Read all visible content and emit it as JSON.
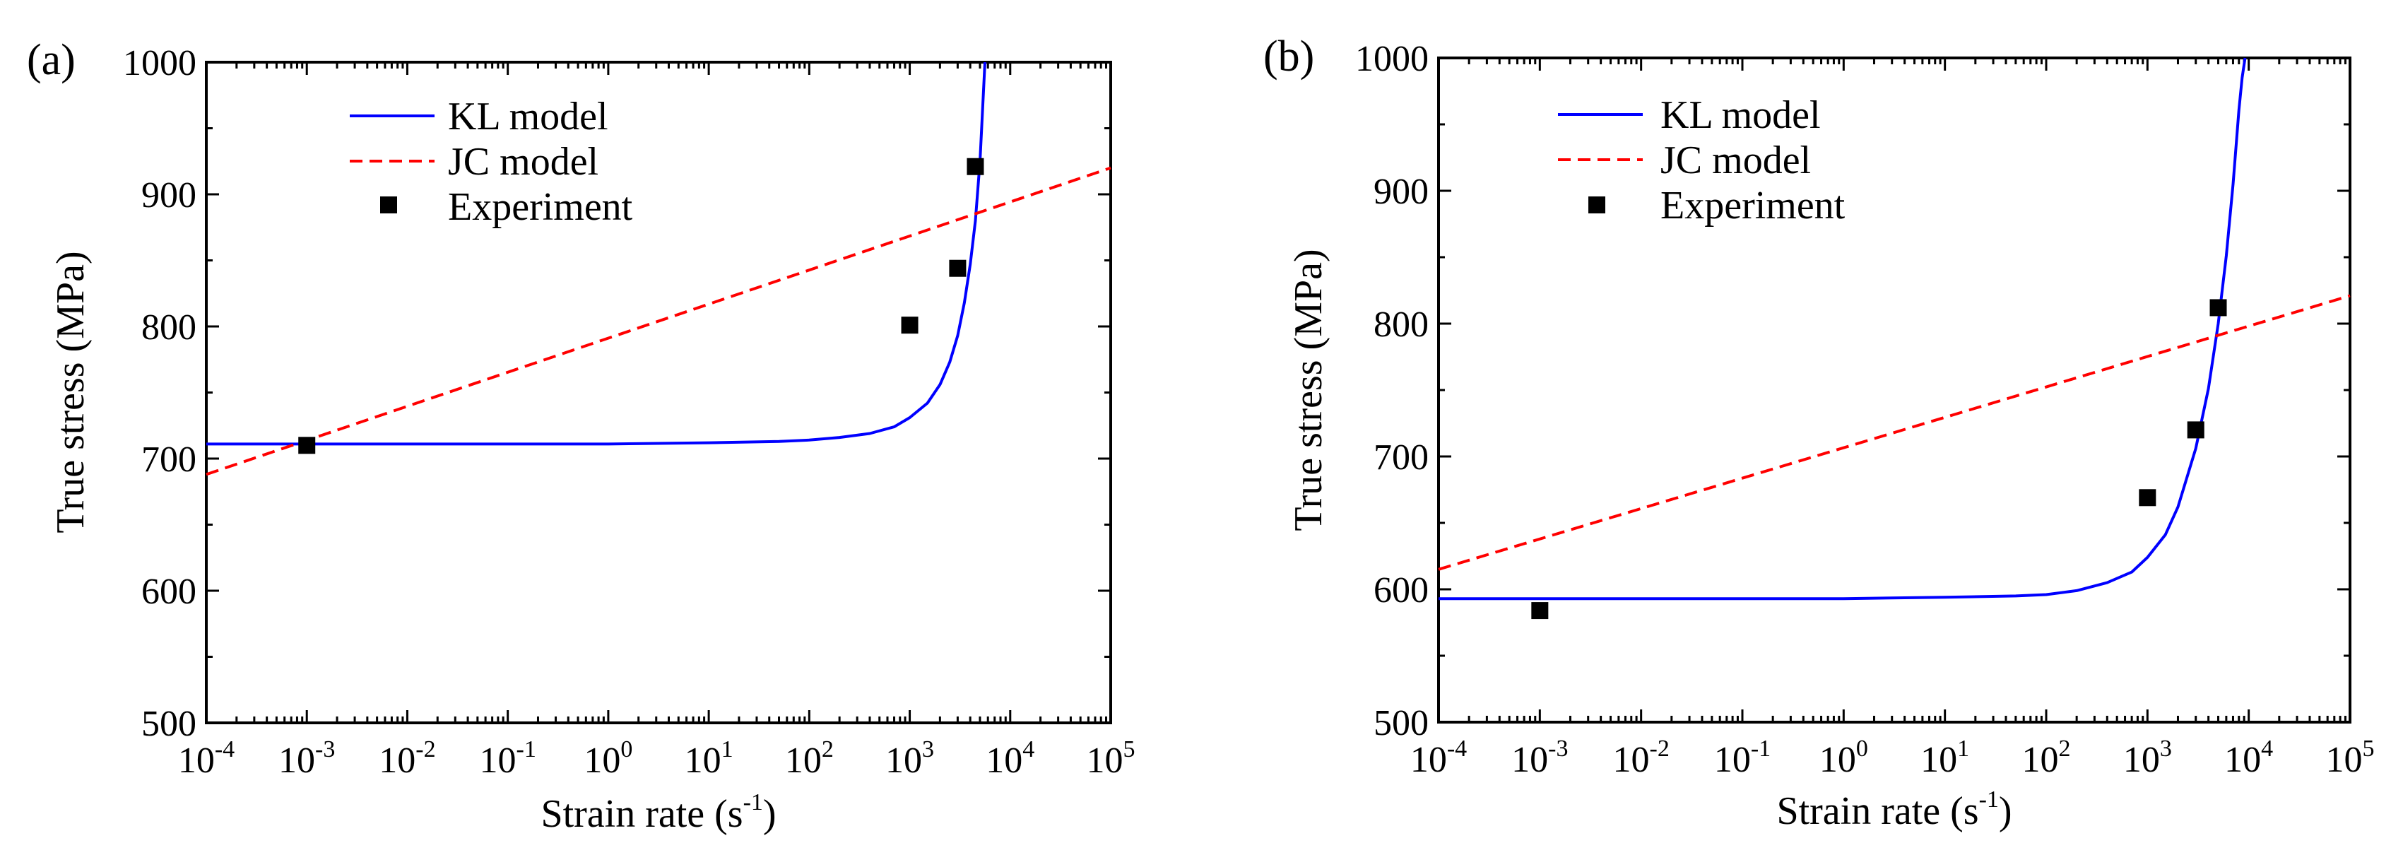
{
  "chart_data": [
    {
      "type": "line",
      "panel_label": "(a)",
      "xlabel": "Strain rate (s",
      "xlabel_sup": "-1",
      "xlabel_suffix": ")",
      "ylabel": "True stress (MPa)",
      "xscale": "log",
      "xlim": [
        0.0001,
        100000
      ],
      "ylim": [
        500,
        1000
      ],
      "x_tick_labels": [
        {
          "base": "10",
          "exp": "-4"
        },
        {
          "base": "10",
          "exp": "-3"
        },
        {
          "base": "10",
          "exp": "-2"
        },
        {
          "base": "10",
          "exp": "-1"
        },
        {
          "base": "10",
          "exp": "0"
        },
        {
          "base": "10",
          "exp": "1"
        },
        {
          "base": "10",
          "exp": "2"
        },
        {
          "base": "10",
          "exp": "3"
        },
        {
          "base": "10",
          "exp": "4"
        },
        {
          "base": "10",
          "exp": "5"
        }
      ],
      "y_tick_labels": [
        "500",
        "600",
        "700",
        "800",
        "900",
        "1000"
      ],
      "legend": {
        "position": "top-left",
        "entries": [
          {
            "label": "KL model",
            "style": "solid",
            "color": "#0000ff"
          },
          {
            "label": "JC model",
            "style": "dashed",
            "color": "#ff0000"
          },
          {
            "label": "Experiment",
            "style": "square-marker",
            "color": "#000000"
          }
        ]
      },
      "series": [
        {
          "name": "KL model",
          "style": "solid",
          "color": "#0000ff",
          "x": [
            0.0001,
            0.01,
            1,
            10,
            50,
            100,
            200,
            400,
            700,
            1000,
            1500,
            2000,
            2500,
            3000,
            3500,
            4000,
            4500,
            5000,
            5600
          ],
          "y": [
            711,
            711,
            711,
            712,
            713,
            714,
            716,
            719,
            724,
            731,
            742,
            756,
            773,
            793,
            818,
            847,
            880,
            925,
            1000
          ]
        },
        {
          "name": "JC model",
          "style": "dashed",
          "color": "#ff0000",
          "x": [
            0.0001,
            100000
          ],
          "y": [
            688,
            920
          ]
        },
        {
          "name": "Experiment",
          "style": "markers",
          "color": "#000000",
          "x": [
            0.001,
            1000,
            3000,
            4500
          ],
          "y": [
            710,
            801,
            844,
            921
          ]
        }
      ]
    },
    {
      "type": "line",
      "panel_label": "(b)",
      "xlabel": "Strain rate (s",
      "xlabel_sup": "-1",
      "xlabel_suffix": ")",
      "ylabel": "True stress (MPa)",
      "xscale": "log",
      "xlim": [
        0.0001,
        100000
      ],
      "ylim": [
        500,
        1000
      ],
      "x_tick_labels": [
        {
          "base": "10",
          "exp": "-4"
        },
        {
          "base": "10",
          "exp": "-3"
        },
        {
          "base": "10",
          "exp": "-2"
        },
        {
          "base": "10",
          "exp": "-1"
        },
        {
          "base": "10",
          "exp": "0"
        },
        {
          "base": "10",
          "exp": "1"
        },
        {
          "base": "10",
          "exp": "2"
        },
        {
          "base": "10",
          "exp": "3"
        },
        {
          "base": "10",
          "exp": "4"
        },
        {
          "base": "10",
          "exp": "5"
        }
      ],
      "y_tick_labels": [
        "500",
        "600",
        "700",
        "800",
        "900",
        "1000"
      ],
      "legend": {
        "position": "top-left",
        "entries": [
          {
            "label": "KL model",
            "style": "solid",
            "color": "#0000ff"
          },
          {
            "label": "JC model",
            "style": "dashed",
            "color": "#ff0000"
          },
          {
            "label": "Experiment",
            "style": "square-marker",
            "color": "#000000"
          }
        ]
      },
      "series": [
        {
          "name": "KL model",
          "style": "solid",
          "color": "#0000ff",
          "x": [
            0.0001,
            0.01,
            1,
            10,
            50,
            100,
            200,
            400,
            700,
            1000,
            1500,
            2000,
            3000,
            4000,
            5000,
            6000,
            7000,
            8000,
            8600,
            9200
          ],
          "y": [
            593,
            593,
            593,
            594,
            595,
            596,
            599,
            605,
            613,
            624,
            641,
            662,
            706,
            751,
            800,
            851,
            905,
            961,
            985,
            1000
          ]
        },
        {
          "name": "JC model",
          "style": "dashed",
          "color": "#ff0000",
          "x": [
            0.0001,
            100000
          ],
          "y": [
            615,
            821
          ]
        },
        {
          "name": "Experiment",
          "style": "markers",
          "color": "#000000",
          "x": [
            0.001,
            1000,
            3000,
            5000
          ],
          "y": [
            584,
            669,
            720,
            812
          ]
        }
      ]
    }
  ]
}
